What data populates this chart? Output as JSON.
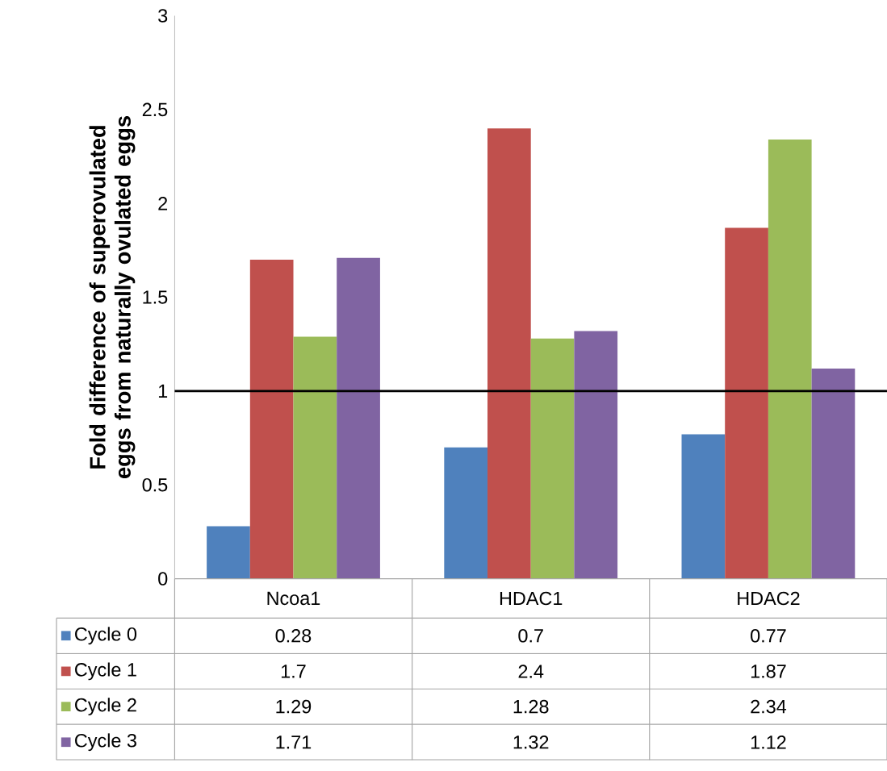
{
  "chart_data": {
    "type": "bar",
    "ylabel": "Fold difference of superovulated eggs from naturally ovulated eggs",
    "categories": [
      "Ncoa1",
      "HDAC1",
      "HDAC2"
    ],
    "series": [
      {
        "name": "Cycle 0",
        "color": "#4f81bd",
        "values": [
          0.28,
          0.7,
          0.77
        ]
      },
      {
        "name": "Cycle 1",
        "color": "#c0504d",
        "values": [
          1.7,
          2.4,
          1.87
        ]
      },
      {
        "name": "Cycle 2",
        "color": "#9bbb59",
        "values": [
          1.29,
          1.28,
          2.34
        ]
      },
      {
        "name": "Cycle 3",
        "color": "#8064a2",
        "values": [
          1.71,
          1.32,
          1.12
        ]
      }
    ],
    "ylim": [
      0,
      3
    ],
    "yticks": [
      0,
      0.5,
      1,
      1.5,
      2,
      2.5,
      3
    ],
    "ref_lines": [
      {
        "axis": "y",
        "value": 1,
        "color": "#000000"
      }
    ],
    "data_labels": true,
    "legend": "bottom",
    "grid": false
  }
}
